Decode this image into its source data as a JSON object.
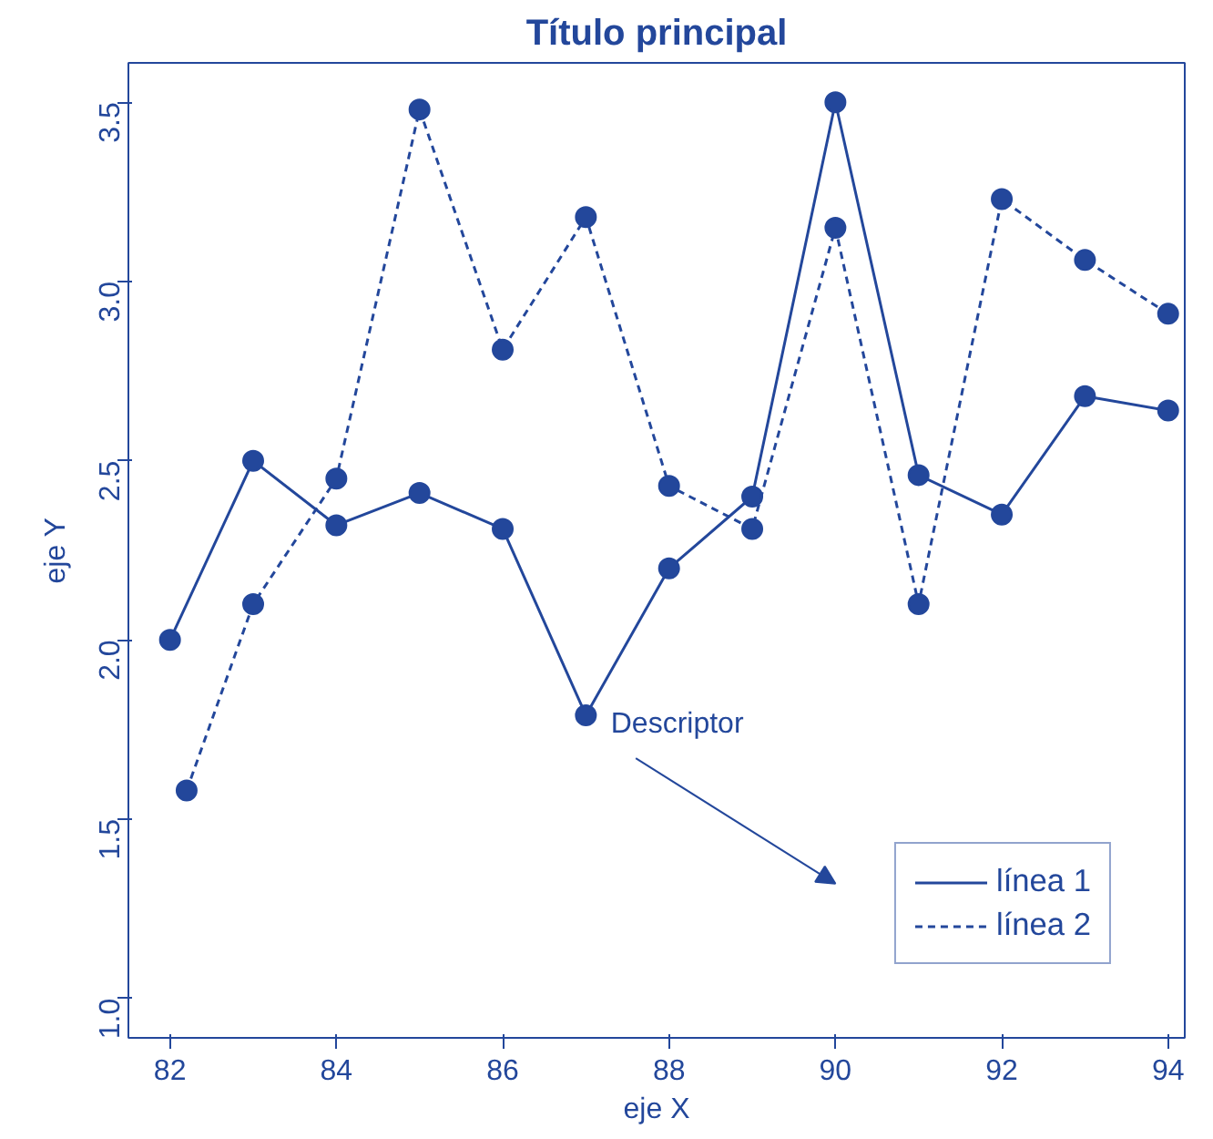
{
  "chart_data": {
    "type": "line",
    "title": "Título principal",
    "xlabel": "eje X",
    "ylabel": "eje Y",
    "xlim": [
      81.5,
      94.2
    ],
    "ylim": [
      0.89,
      3.61
    ],
    "xticks": [
      82,
      84,
      86,
      88,
      90,
      92,
      94
    ],
    "yticks": [
      {
        "value": 1.0,
        "label": "1.0"
      },
      {
        "value": 1.5,
        "label": "1.5"
      },
      {
        "value": 2.0,
        "label": "2.0"
      },
      {
        "value": 2.5,
        "label": "2.5"
      },
      {
        "value": 3.0,
        "label": "3.0"
      },
      {
        "value": 3.5,
        "label": "3.5"
      }
    ],
    "grid": false,
    "legend": "bottom right",
    "marker": "circle",
    "annotations": [
      "Descriptor"
    ],
    "series": [
      {
        "name": "línea 1",
        "color": "#23479b",
        "line_style": "solid",
        "x": [
          82,
          83,
          84,
          85,
          86,
          87,
          88,
          89,
          90,
          91,
          92,
          93,
          94
        ],
        "values": [
          2.0,
          2.5,
          2.32,
          2.41,
          2.31,
          1.79,
          2.2,
          2.4,
          3.5,
          2.46,
          2.35,
          2.68,
          2.64
        ]
      },
      {
        "name": "línea 2",
        "color": "#23479b",
        "line_style": "dashed",
        "x": [
          82.2,
          83,
          84,
          85,
          86,
          87,
          88,
          89,
          90,
          91,
          92,
          93,
          94
        ],
        "values": [
          1.58,
          2.1,
          2.45,
          3.48,
          2.81,
          3.18,
          2.43,
          2.31,
          3.15,
          2.1,
          3.23,
          3.06,
          2.91
        ]
      }
    ]
  }
}
